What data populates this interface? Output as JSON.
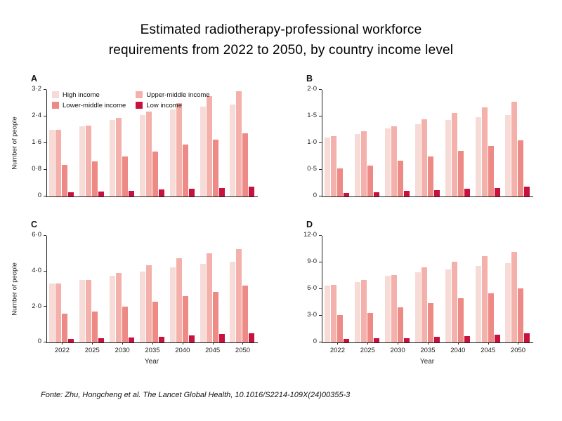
{
  "title": {
    "line1": "Estimated radiotherapy-professional workforce",
    "line2": "requirements from 2022 to 2050, by country income level"
  },
  "footer": "Fonte: Zhu, Hongcheng et al. The Lancet Global Health, 10.1016/S2214-109X(24)00355-3",
  "legend": [
    "High income",
    "Upper-middle income",
    "Lower-middle income",
    "Low income"
  ],
  "colors": [
    "#f7dbd7",
    "#f4b1ab",
    "#ee8a85",
    "#c8123e"
  ],
  "axis": {
    "xlabel": "Year",
    "ylabel": "Number of people"
  },
  "categories": [
    "2022",
    "2025",
    "2030",
    "2035",
    "2040",
    "2045",
    "2050"
  ],
  "chart_data": [
    {
      "type": "bar",
      "panel": "A",
      "ylim": [
        0,
        3.2
      ],
      "yticks": [
        0,
        0.8,
        1.6,
        2.4,
        3.2
      ],
      "ytick_labels": [
        "0",
        "0·8",
        "1·6",
        "2·4",
        "3·2"
      ],
      "show_ylabel": true,
      "show_xticks": false,
      "legend": true,
      "legend_position": "top-left",
      "grid": false,
      "series": [
        {
          "name": "High income",
          "values": [
            2.0,
            2.1,
            2.3,
            2.45,
            2.6,
            2.7,
            2.75
          ]
        },
        {
          "name": "Upper-middle income",
          "values": [
            2.0,
            2.12,
            2.35,
            2.55,
            2.8,
            3.0,
            3.15
          ]
        },
        {
          "name": "Lower-middle income",
          "values": [
            0.95,
            1.05,
            1.2,
            1.35,
            1.55,
            1.7,
            1.9
          ]
        },
        {
          "name": "Low income",
          "values": [
            0.13,
            0.15,
            0.17,
            0.2,
            0.23,
            0.26,
            0.3
          ]
        }
      ]
    },
    {
      "type": "bar",
      "panel": "B",
      "ylim": [
        0,
        2.0
      ],
      "yticks": [
        0,
        0.5,
        1.0,
        1.5,
        2.0
      ],
      "ytick_labels": [
        "0",
        "0·5",
        "1·0",
        "1·5",
        "2·0"
      ],
      "show_ylabel": false,
      "show_xticks": false,
      "legend": false,
      "grid": false,
      "series": [
        {
          "name": "High income",
          "values": [
            1.1,
            1.17,
            1.27,
            1.36,
            1.43,
            1.48,
            1.53
          ]
        },
        {
          "name": "Upper-middle income",
          "values": [
            1.13,
            1.22,
            1.32,
            1.45,
            1.57,
            1.67,
            1.77
          ]
        },
        {
          "name": "Lower-middle income",
          "values": [
            0.53,
            0.58,
            0.67,
            0.75,
            0.85,
            0.95,
            1.05
          ]
        },
        {
          "name": "Low income",
          "values": [
            0.07,
            0.08,
            0.1,
            0.12,
            0.14,
            0.16,
            0.18
          ]
        }
      ]
    },
    {
      "type": "bar",
      "panel": "C",
      "ylim": [
        0,
        6.0
      ],
      "yticks": [
        0,
        2.0,
        4.0,
        6.0
      ],
      "ytick_labels": [
        "0",
        "2·0",
        "4·0",
        "6·0"
      ],
      "show_ylabel": true,
      "show_xticks": true,
      "legend": false,
      "grid": false,
      "series": [
        {
          "name": "High income",
          "values": [
            3.3,
            3.5,
            3.75,
            4.0,
            4.2,
            4.4,
            4.55
          ]
        },
        {
          "name": "Upper-middle income",
          "values": [
            3.3,
            3.5,
            3.9,
            4.35,
            4.75,
            5.0,
            5.25
          ]
        },
        {
          "name": "Lower-middle income",
          "values": [
            1.6,
            1.75,
            2.0,
            2.3,
            2.6,
            2.85,
            3.2
          ]
        },
        {
          "name": "Low income",
          "values": [
            0.2,
            0.25,
            0.28,
            0.32,
            0.38,
            0.45,
            0.52
          ]
        }
      ]
    },
    {
      "type": "bar",
      "panel": "D",
      "ylim": [
        0,
        12.0
      ],
      "yticks": [
        0,
        3.0,
        6.0,
        9.0,
        12.0
      ],
      "ytick_labels": [
        "0",
        "3·0",
        "6·0",
        "9·0",
        "12·0"
      ],
      "show_ylabel": false,
      "show_xticks": true,
      "legend": false,
      "grid": false,
      "series": [
        {
          "name": "High income",
          "values": [
            6.4,
            6.8,
            7.5,
            7.9,
            8.2,
            8.6,
            8.9
          ]
        },
        {
          "name": "Upper-middle income",
          "values": [
            6.5,
            7.0,
            7.6,
            8.4,
            9.1,
            9.7,
            10.2
          ]
        },
        {
          "name": "Lower-middle income",
          "values": [
            3.1,
            3.3,
            3.9,
            4.4,
            5.0,
            5.5,
            6.1
          ]
        },
        {
          "name": "Low income",
          "values": [
            0.4,
            0.45,
            0.5,
            0.6,
            0.7,
            0.85,
            1.0
          ]
        }
      ]
    }
  ]
}
